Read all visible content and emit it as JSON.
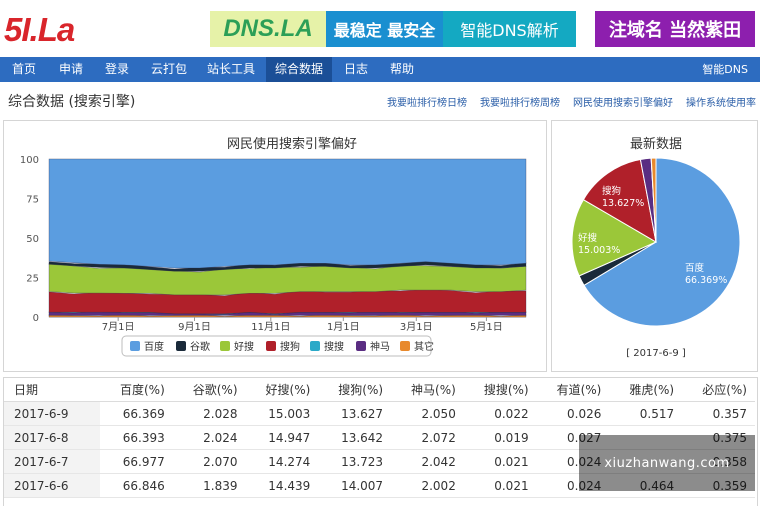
{
  "logo": "5I.La",
  "ads": {
    "banner_left": {
      "brand": "DNS.LA",
      "slogan": "最稳定 最安全",
      "tagline": "智能DNS解析"
    },
    "banner_right": "注域名 当然紫田"
  },
  "nav": {
    "items": [
      "首页",
      "申请",
      "登录",
      "云打包",
      "站长工具",
      "综合数据",
      "日志",
      "帮助"
    ],
    "active": "综合数据",
    "right_link": "智能DNS"
  },
  "page_title": "综合数据 (搜索引擎)",
  "top_links": [
    "我要啦排行榜日榜",
    "我要啦排行榜周榜",
    "网民使用搜索引擎偏好",
    "操作系统使用率"
  ],
  "colors": {
    "baidu": "#5b9de0",
    "google": "#1a2a3a",
    "haosou": "#9bc739",
    "sogou": "#b0202a",
    "soso": "#2aa9c8",
    "shenma": "#5a2d82",
    "other": "#e8892c"
  },
  "chart_data": [
    {
      "type": "area",
      "title": "网民使用搜索引擎偏好",
      "x_tick_labels": [
        "7月1日",
        "9月1日",
        "11月1日",
        "1月1日",
        "3月1日",
        "5月1日"
      ],
      "y_ticks": [
        0,
        25,
        50,
        75,
        100
      ],
      "ylim": [
        0,
        100
      ],
      "stacking": "percent",
      "legend_position": "bottom",
      "series": [
        {
          "name": "百度",
          "values": [
            64,
            65,
            66,
            67,
            68,
            69,
            69,
            68,
            67,
            67,
            66,
            66,
            67,
            67,
            66,
            65,
            66,
            67,
            67,
            66
          ]
        },
        {
          "name": "谷歌",
          "values": [
            2,
            2,
            2,
            2,
            2,
            2,
            2,
            2,
            2,
            2,
            2,
            2,
            2,
            2,
            2,
            2,
            2,
            2,
            2,
            2
          ]
        },
        {
          "name": "好搜",
          "values": [
            17,
            17,
            16,
            16,
            15,
            15,
            15,
            16,
            16,
            16,
            16,
            16,
            15,
            15,
            15,
            16,
            15,
            15,
            15,
            15
          ]
        },
        {
          "name": "搜狗",
          "values": [
            13,
            12,
            12,
            12,
            12,
            12,
            12,
            12,
            12,
            13,
            13,
            13,
            13,
            13,
            14,
            14,
            14,
            13,
            13,
            14
          ]
        },
        {
          "name": "搜搜",
          "values": [
            0,
            0,
            0,
            0,
            0,
            0,
            0,
            0,
            0,
            0,
            0,
            0,
            0,
            0,
            0,
            0,
            0,
            0,
            0,
            0
          ]
        },
        {
          "name": "神马",
          "values": [
            2,
            2,
            2,
            2,
            2,
            1,
            1,
            1,
            2,
            1,
            2,
            2,
            2,
            2,
            2,
            2,
            2,
            2,
            2,
            2
          ]
        },
        {
          "name": "其它",
          "values": [
            1,
            1,
            1,
            1,
            1,
            1,
            1,
            1,
            1,
            1,
            1,
            1,
            1,
            1,
            1,
            1,
            1,
            1,
            1,
            1
          ]
        }
      ]
    },
    {
      "type": "pie",
      "title": "最新数据",
      "date_label": "[ 2017-6-9 ]",
      "slices": [
        {
          "name": "百度",
          "value": 66.369,
          "label": "66.369%"
        },
        {
          "name": "谷歌",
          "value": 2.028
        },
        {
          "name": "好搜",
          "value": 15.003,
          "label": "15.003%"
        },
        {
          "name": "搜狗",
          "value": 13.627,
          "label": "13.627%"
        },
        {
          "name": "神马",
          "value": 2.05
        },
        {
          "name": "搜搜",
          "value": 0.022
        },
        {
          "name": "其它",
          "value": 0.901
        }
      ]
    }
  ],
  "table": {
    "headers": [
      "日期",
      "百度(%)",
      "谷歌(%)",
      "好搜(%)",
      "搜狗(%)",
      "神马(%)",
      "搜搜(%)",
      "有道(%)",
      "雅虎(%)",
      "必应(%)"
    ],
    "rows": [
      [
        "2017-6-9",
        "66.369",
        "2.028",
        "15.003",
        "13.627",
        "2.050",
        "0.022",
        "0.026",
        "0.517",
        "0.357"
      ],
      [
        "2017-6-8",
        "66.393",
        "2.024",
        "14.947",
        "13.642",
        "2.072",
        "0.019",
        "0.027",
        "",
        "0.375"
      ],
      [
        "2017-6-7",
        "66.977",
        "2.070",
        "14.274",
        "13.723",
        "2.042",
        "0.021",
        "0.024",
        "",
        "0.358"
      ],
      [
        "2017-6-6",
        "66.846",
        "1.839",
        "14.439",
        "14.007",
        "2.002",
        "0.021",
        "0.024",
        "0.464",
        "0.359"
      ]
    ]
  },
  "watermark": "xiuzhanwang.com"
}
